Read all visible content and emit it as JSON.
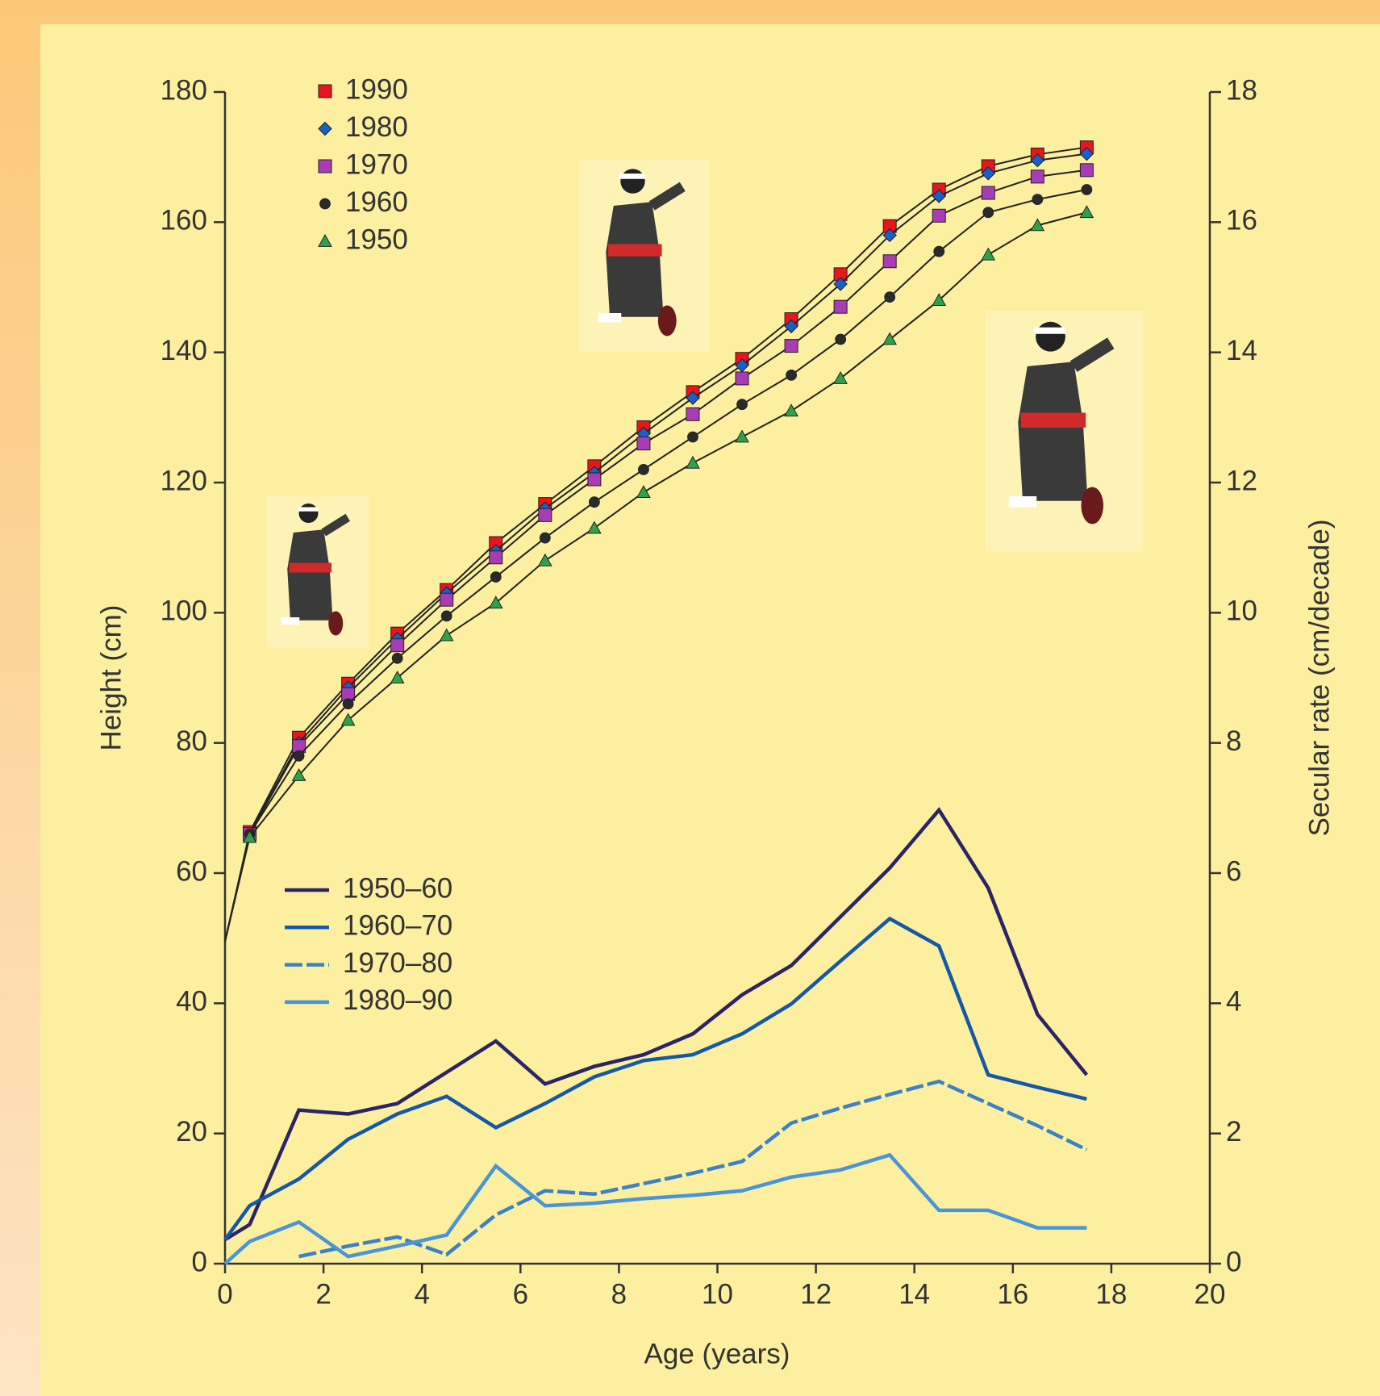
{
  "chart_data": {
    "type": "line",
    "xlabel": "Age (years)",
    "ylabel": "Height (cm)",
    "y2label": "Secular rate (cm/decade)",
    "xlim": [
      0,
      20
    ],
    "xticks": [
      0,
      2,
      4,
      6,
      8,
      10,
      12,
      14,
      16,
      18,
      20
    ],
    "ylim": [
      0,
      180
    ],
    "yticks": [
      0,
      20,
      40,
      60,
      80,
      100,
      120,
      140,
      160,
      180
    ],
    "y2lim": [
      0,
      18
    ],
    "y2ticks": [
      0,
      2,
      4,
      6,
      8,
      10,
      12,
      14,
      16,
      18
    ],
    "x": [
      0,
      0.5,
      1.5,
      2.5,
      3.5,
      4.5,
      5.5,
      6.5,
      7.5,
      8.5,
      9.5,
      10.5,
      11.5,
      12.5,
      13.5,
      14.5,
      15.5,
      16.5,
      17.5
    ],
    "series": [
      {
        "name": "1990",
        "color": "#e8141e",
        "marker": "square",
        "values": [
          49.5,
          66.3,
          80.8,
          89.1,
          96.8,
          103.5,
          110.7,
          116.7,
          122.5,
          128.5,
          133.9,
          139,
          145.1,
          152,
          159.4,
          165,
          168.6,
          170.4,
          171.5
        ]
      },
      {
        "name": "1980",
        "color": "#1a5ec8",
        "marker": "diamond",
        "values": [
          49.5,
          66,
          80,
          88.5,
          96,
          103,
          109.5,
          116,
          121.5,
          127.5,
          133,
          138,
          144,
          150.5,
          158,
          164,
          167.5,
          169.5,
          170.5
        ]
      },
      {
        "name": "1970",
        "color": "#a83cb4",
        "marker": "square",
        "values": [
          49.5,
          66,
          79.5,
          87.5,
          95,
          102,
          108.5,
          115,
          120.5,
          126,
          130.5,
          136,
          141,
          147,
          154,
          161,
          164.5,
          167,
          168
        ]
      },
      {
        "name": "1960",
        "color": "#2a2a2a",
        "marker": "circle",
        "values": [
          49.5,
          66,
          78,
          86,
          93,
          99.5,
          105.5,
          111.5,
          117,
          122,
          127,
          132,
          136.5,
          142,
          148.5,
          155.5,
          161.5,
          163.5,
          165
        ]
      },
      {
        "name": "1950",
        "color": "#2ea24a",
        "marker": "triangle",
        "values": [
          49.5,
          65.5,
          75,
          83.5,
          90,
          96.5,
          101.5,
          108,
          113,
          118.5,
          123,
          127,
          131,
          136,
          142,
          148,
          155,
          159.5,
          161.5
        ]
      },
      {
        "name": "1950–60",
        "color": "#2b2466",
        "axis": "y2",
        "values": [
          0.37,
          0.6,
          2.36,
          2.3,
          2.46,
          2.94,
          3.42,
          2.76,
          3.03,
          3.21,
          3.53,
          4.13,
          4.58,
          5.33,
          6.08,
          6.97,
          5.77,
          3.83,
          2.9
        ]
      },
      {
        "name": "1960–70",
        "color": "#1658a8",
        "axis": "y2",
        "values": [
          0.37,
          0.89,
          1.3,
          1.91,
          2.3,
          2.57,
          2.09,
          2.46,
          2.87,
          3.12,
          3.21,
          3.53,
          3.99,
          4.65,
          5.3,
          4.88,
          2.9,
          2.71,
          2.53
        ]
      },
      {
        "name": "1970–80",
        "color": "#3c80c8",
        "axis": "y2",
        "dashed": true,
        "values": [
          null,
          null,
          0.11,
          0.27,
          0.41,
          0.14,
          0.75,
          1.12,
          1.07,
          1.23,
          1.39,
          1.57,
          2.16,
          2.39,
          2.6,
          2.8,
          2.46,
          2.12,
          1.75
        ]
      },
      {
        "name": "1980–90",
        "color": "#4a94d8",
        "axis": "y2",
        "values": [
          0,
          0.34,
          0.64,
          0.11,
          0.27,
          0.44,
          1.5,
          0.89,
          0.93,
          1.0,
          1.05,
          1.12,
          1.33,
          1.44,
          1.67,
          0.82,
          0.82,
          0.55,
          0.55
        ]
      }
    ]
  }
}
